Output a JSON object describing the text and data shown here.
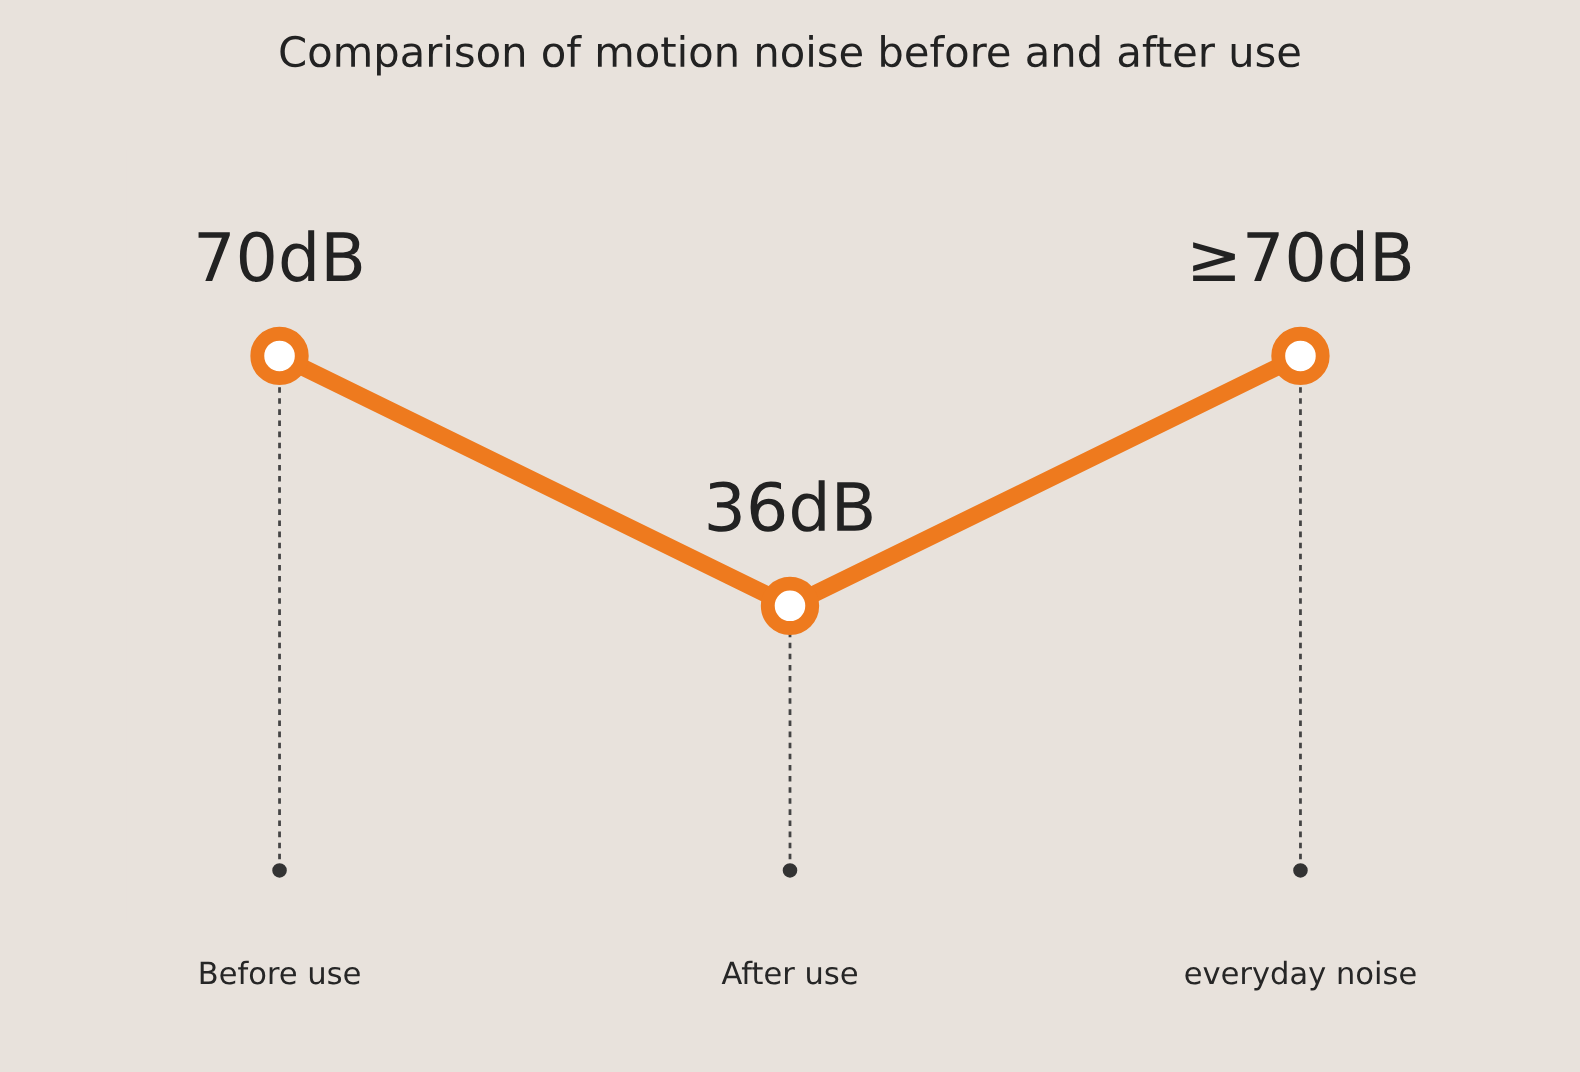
{
  "chart_data": {
    "type": "line",
    "title": "Comparison of motion noise before and after use",
    "categories": [
      "Before use",
      "After use",
      "everyday noise"
    ],
    "series": [
      {
        "color": "#ee7a1e",
        "values": [
          70,
          36,
          70
        ],
        "value_labels": [
          "70dB",
          "36dB",
          "≥70dB"
        ]
      }
    ],
    "marker": "circle",
    "line_style": "solid",
    "grid": "x",
    "legend": false,
    "tick_labels": "x"
  }
}
